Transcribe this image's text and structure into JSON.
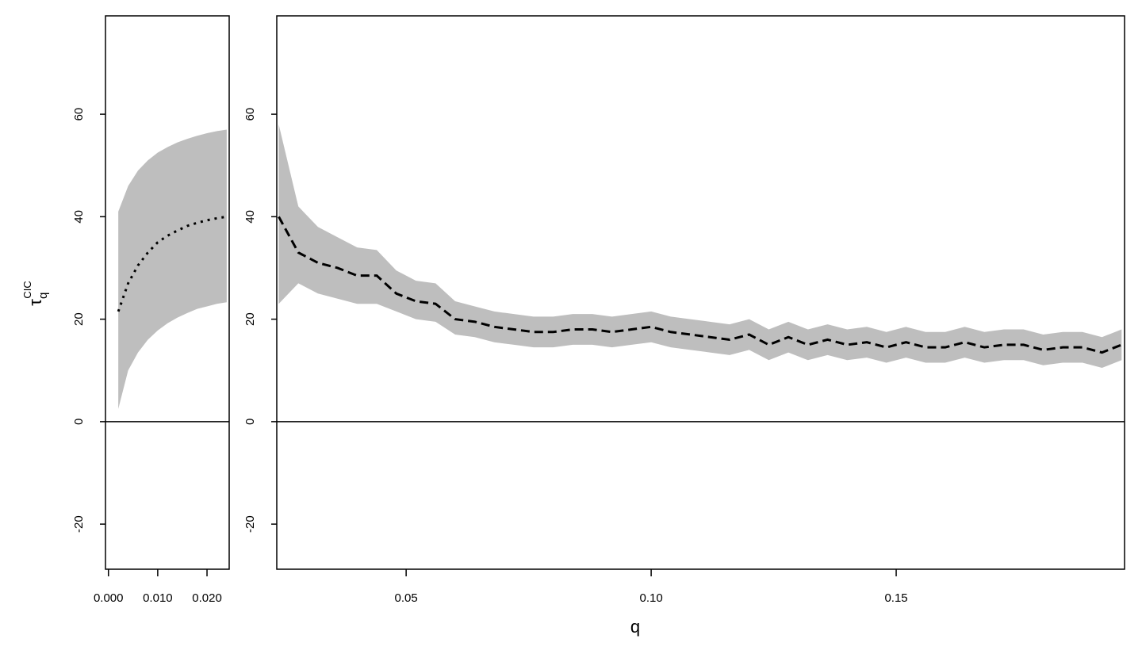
{
  "chart_data": [
    {
      "type": "line",
      "x": [
        0.002,
        0.004,
        0.006,
        0.008,
        0.01,
        0.012,
        0.014,
        0.016,
        0.018,
        0.02,
        0.022,
        0.024
      ],
      "series": [
        {
          "color": "#000000",
          "dash": "dotted",
          "values": [
            21.5,
            27,
            30.5,
            33,
            35,
            36.3,
            37.3,
            38.2,
            38.8,
            39.3,
            39.7,
            40
          ]
        }
      ],
      "band": {
        "color": "#bebebe",
        "lower": [
          2.5,
          10,
          13.5,
          16,
          17.8,
          19.2,
          20.3,
          21.2,
          22,
          22.5,
          23,
          23.3
        ],
        "upper": [
          41,
          46,
          49,
          51,
          52.5,
          53.6,
          54.5,
          55.2,
          55.8,
          56.3,
          56.7,
          57
        ]
      },
      "hline": 0,
      "xlim": [
        -0.0006,
        0.0245
      ],
      "xticks": [
        {
          "value": 0,
          "label": "0.000"
        },
        {
          "value": 0.01,
          "label": "0.010"
        },
        {
          "value": 0.02,
          "label": "0.020"
        }
      ],
      "ylim": [
        -28.8,
        79.2
      ],
      "yticks": [
        -20,
        0,
        20,
        40,
        60
      ],
      "ylabel": {
        "base": "τ",
        "sub": "q",
        "sup": "CIC"
      }
    },
    {
      "type": "line",
      "x": [
        0.024,
        0.028,
        0.032,
        0.036,
        0.04,
        0.044,
        0.048,
        0.052,
        0.056,
        0.06,
        0.064,
        0.068,
        0.072,
        0.076,
        0.08,
        0.084,
        0.088,
        0.092,
        0.096,
        0.1,
        0.104,
        0.108,
        0.112,
        0.116,
        0.12,
        0.124,
        0.128,
        0.132,
        0.136,
        0.14,
        0.144,
        0.148,
        0.152,
        0.156,
        0.16,
        0.164,
        0.168,
        0.172,
        0.176,
        0.18,
        0.184,
        0.188,
        0.192,
        0.196
      ],
      "series": [
        {
          "color": "#000000",
          "dash": "dashed",
          "values": [
            40,
            33,
            31,
            30,
            28.5,
            28.5,
            25,
            23.5,
            23,
            20,
            19.5,
            18.5,
            18,
            17.5,
            17.5,
            18,
            18,
            17.5,
            18,
            18.5,
            17.5,
            17,
            16.5,
            16,
            17,
            15,
            16.5,
            15,
            16,
            15,
            15.5,
            14.5,
            15.5,
            14.5,
            14.5,
            15.5,
            14.5,
            15,
            15,
            14,
            14.5,
            14.5,
            13.5,
            15
          ]
        }
      ],
      "band": {
        "color": "#bebebe",
        "lower": [
          23,
          27,
          25,
          24,
          23,
          23,
          21.5,
          20,
          19.5,
          17,
          16.5,
          15.5,
          15,
          14.5,
          14.5,
          15,
          15,
          14.5,
          15,
          15.5,
          14.5,
          14,
          13.5,
          13,
          14,
          12,
          13.5,
          12,
          13,
          12,
          12.5,
          11.5,
          12.5,
          11.5,
          11.5,
          12.5,
          11.5,
          12,
          12,
          11,
          11.5,
          11.5,
          10.5,
          12
        ],
        "upper": [
          58,
          42,
          38,
          36,
          34,
          33.5,
          29.5,
          27.5,
          27,
          23.5,
          22.5,
          21.5,
          21,
          20.5,
          20.5,
          21,
          21,
          20.5,
          21,
          21.5,
          20.5,
          20,
          19.5,
          19,
          20,
          18,
          19.5,
          18,
          19,
          18,
          18.5,
          17.5,
          18.5,
          17.5,
          17.5,
          18.5,
          17.5,
          18,
          18,
          17,
          17.5,
          17.5,
          16.5,
          18
        ]
      },
      "hline": 0,
      "xlim": [
        0.0236,
        0.1966
      ],
      "xticks": [
        0.05,
        {
          "value": 0.1,
          "label": "0.10"
        },
        0.15
      ],
      "ylim": [
        -28.8,
        79.2
      ],
      "yticks": [
        -20,
        0,
        20,
        40,
        60
      ],
      "xlabel": "q"
    }
  ]
}
